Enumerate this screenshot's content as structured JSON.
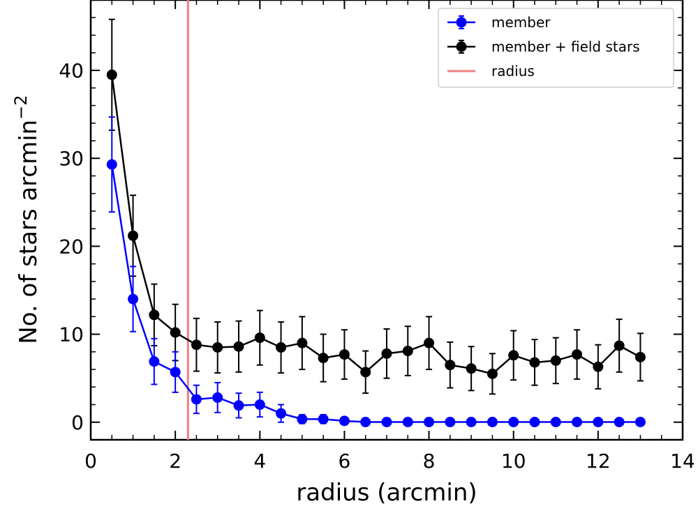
{
  "chart_data": {
    "type": "line",
    "title": "",
    "xlabel": "radius (arcmin)",
    "ylabel_main": "No. of stars  arcmin",
    "ylabel_sup": "−2",
    "xlim": [
      0,
      14
    ],
    "ylim": [
      -2,
      48
    ],
    "xticks": [
      0,
      2,
      4,
      6,
      8,
      10,
      12,
      14
    ],
    "yticks": [
      0,
      10,
      20,
      30,
      40
    ],
    "x": [
      0.5,
      1.0,
      1.5,
      2.0,
      2.5,
      3.0,
      3.5,
      4.0,
      4.5,
      5.0,
      5.5,
      6.0,
      6.5,
      7.0,
      7.5,
      8.0,
      8.5,
      9.0,
      9.5,
      10.0,
      10.5,
      11.0,
      11.5,
      12.0,
      12.5,
      13.0
    ],
    "series": [
      {
        "name": "member",
        "color": "#0000ff",
        "values": [
          29.3,
          14.0,
          6.9,
          5.7,
          2.6,
          2.8,
          1.9,
          2.0,
          1.0,
          0.35,
          0.35,
          0.15,
          0.02,
          0.02,
          0.02,
          0.02,
          0.02,
          0.02,
          0.02,
          0.02,
          0.02,
          0.02,
          0.02,
          0.02,
          0.02,
          0.02
        ],
        "errors": [
          5.4,
          3.7,
          2.6,
          2.3,
          1.6,
          1.7,
          1.4,
          1.4,
          1.0,
          0.5,
          0.5,
          0.25,
          0.1,
          0.1,
          0.1,
          0.1,
          0.1,
          0.1,
          0.1,
          0.1,
          0.1,
          0.1,
          0.1,
          0.1,
          0.1,
          0.1
        ]
      },
      {
        "name": "member + field stars",
        "color": "#000000",
        "values": [
          39.5,
          21.2,
          12.2,
          10.2,
          8.8,
          8.5,
          8.6,
          9.6,
          8.5,
          9.0,
          7.3,
          7.7,
          5.7,
          7.8,
          8.1,
          9.0,
          6.5,
          6.1,
          5.5,
          7.6,
          6.8,
          7.0,
          7.7,
          6.3,
          8.7,
          7.4
        ],
        "errors": [
          6.3,
          4.6,
          3.5,
          3.2,
          3.0,
          2.9,
          2.9,
          3.1,
          2.9,
          3.0,
          2.7,
          2.8,
          2.4,
          2.8,
          2.8,
          3.0,
          2.6,
          2.5,
          2.3,
          2.8,
          2.6,
          2.6,
          2.8,
          2.5,
          3.0,
          2.7
        ]
      }
    ],
    "vline": {
      "name": "radius",
      "x": 2.3,
      "color": "#f08080"
    },
    "legend": {
      "position": "top-right",
      "entries": [
        "member",
        "member + field stars",
        "radius"
      ]
    },
    "grid": false
  }
}
